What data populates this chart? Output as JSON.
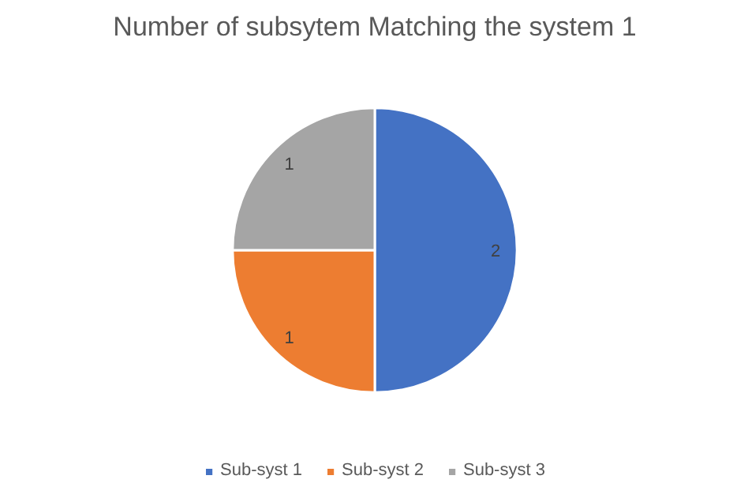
{
  "chart_data": {
    "type": "pie",
    "title": "Number of subsytem Matching the system 1",
    "categories": [
      "Sub-syst 1",
      "Sub-syst 2",
      "Sub-syst 3"
    ],
    "values": [
      2,
      1,
      1
    ],
    "colors": [
      "#4472c4",
      "#ed7d31",
      "#a5a5a5"
    ],
    "data_labels": true,
    "legend": "bottom"
  }
}
